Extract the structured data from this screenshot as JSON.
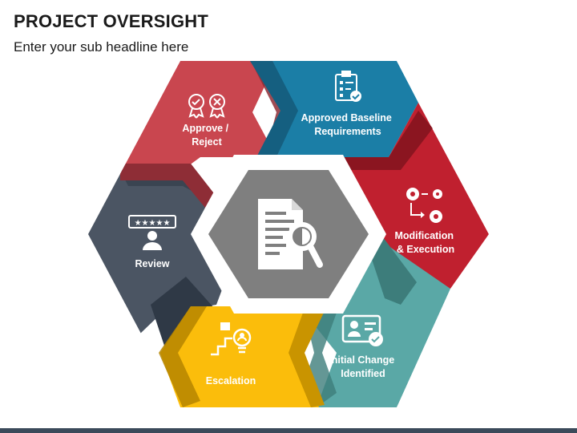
{
  "header": {
    "title": "PROJECT OVERSIGHT",
    "subtitle": "Enter your sub headline here"
  },
  "segments": [
    {
      "key": "approve",
      "lines": [
        "Approve /",
        "Reject"
      ],
      "color": "#c9464f",
      "icon": "award-badges-icon"
    },
    {
      "key": "baseline",
      "lines": [
        "Approved Baseline",
        "Requirements"
      ],
      "color": "#1b7ea6",
      "icon": "checklist-clipboard-icon"
    },
    {
      "key": "modification",
      "lines": [
        "Modification",
        "& Execution"
      ],
      "color": "#c0202f",
      "icon": "gears-process-icon"
    },
    {
      "key": "initial",
      "lines": [
        "Initial Change",
        "Identified"
      ],
      "color": "#5aa8a6",
      "icon": "id-card-check-icon"
    },
    {
      "key": "escalation",
      "lines": [
        "Escalation"
      ],
      "color": "#fbbd0b",
      "icon": "escalation-stairs-icon"
    },
    {
      "key": "review",
      "lines": [
        "Review"
      ],
      "color": "#4b5563",
      "icon": "rating-review-icon"
    }
  ],
  "center": {
    "icon": "document-search-icon",
    "color": "#7f7f7f"
  }
}
